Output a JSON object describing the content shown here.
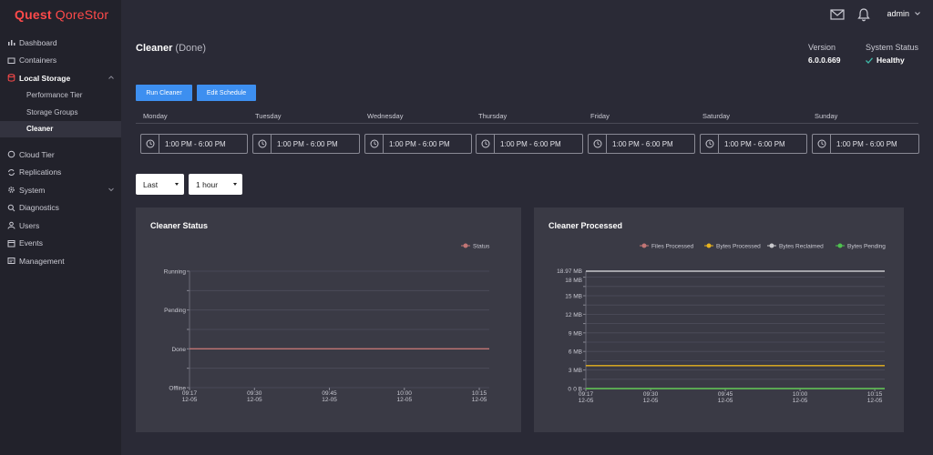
{
  "brand": {
    "name": "Quest",
    "product": "QoreStor"
  },
  "sidebar": {
    "items": [
      {
        "label": "Dashboard",
        "icon": "bar-chart-icon"
      },
      {
        "label": "Containers",
        "icon": "folder-icon"
      },
      {
        "label": "Local Storage",
        "icon": "database-icon"
      }
    ],
    "sub_items": [
      {
        "label": "Performance Tier"
      },
      {
        "label": "Storage Groups"
      },
      {
        "label": "Cleaner"
      }
    ],
    "items2": [
      {
        "label": "Cloud Tier",
        "icon": "cloud-icon"
      },
      {
        "label": "Replications",
        "icon": "replication-icon"
      },
      {
        "label": "System",
        "icon": "gear-icon"
      },
      {
        "label": "Diagnostics",
        "icon": "magnifier-icon"
      },
      {
        "label": "Users",
        "icon": "user-icon"
      },
      {
        "label": "Events",
        "icon": "calendar-icon"
      },
      {
        "label": "Management",
        "icon": "management-icon"
      }
    ]
  },
  "topbar": {
    "user": "admin",
    "icons": [
      "mail-icon",
      "bell-icon"
    ]
  },
  "page": {
    "title": "Cleaner",
    "status": "(Done)",
    "version_label": "Version",
    "version_value": "6.0.0.669",
    "system_status_label": "System Status",
    "system_status_value": "Healthy",
    "status_color": "#3fb8a8"
  },
  "buttons": {
    "run": "Run Cleaner",
    "edit": "Edit Schedule",
    "color": "#3d8ff0"
  },
  "schedule": [
    {
      "day": "Monday",
      "time": "1:00 PM - 6:00 PM"
    },
    {
      "day": "Tuesday",
      "time": "1:00 PM - 6:00 PM"
    },
    {
      "day": "Wednesday",
      "time": "1:00 PM - 6:00 PM"
    },
    {
      "day": "Thursday",
      "time": "1:00 PM - 6:00 PM"
    },
    {
      "day": "Friday",
      "time": "1:00 PM - 6:00 PM"
    },
    {
      "day": "Saturday",
      "time": "1:00 PM - 6:00 PM"
    },
    {
      "day": "Sunday",
      "time": "1:00 PM - 6:00 PM"
    }
  ],
  "filters": {
    "range": "Last",
    "unit": "1 hour"
  },
  "chart_data": [
    {
      "type": "line",
      "title": "Cleaner Status",
      "categories": [
        "Offline",
        "Done",
        "Pending",
        "Running"
      ],
      "x_ticks": [
        {
          "time": "09:17",
          "date": "12-05"
        },
        {
          "time": "09:30",
          "date": "12-05"
        },
        {
          "time": "09:45",
          "date": "12-05"
        },
        {
          "time": "10:00",
          "date": "12-05"
        },
        {
          "time": "10:15",
          "date": "12-05"
        }
      ],
      "x_range": [
        "09:17",
        "10:17"
      ],
      "series": [
        {
          "name": "Status",
          "color": "#c27575",
          "value": "Done"
        }
      ],
      "legend_position": "top-right",
      "grid": true
    },
    {
      "type": "line",
      "title": "Cleaner Processed",
      "y_ticks": [
        "0",
        "0 B",
        "3 MB",
        "6 MB",
        "9 MB",
        "12 MB",
        "15 MB",
        "18 MB",
        "18.97 MB"
      ],
      "y_unit": "MB",
      "ylim": [
        0,
        18.97
      ],
      "x_ticks": [
        {
          "time": "09:17",
          "date": "12-05"
        },
        {
          "time": "09:30",
          "date": "12-05"
        },
        {
          "time": "09:45",
          "date": "12-05"
        },
        {
          "time": "10:00",
          "date": "12-05"
        },
        {
          "time": "10:15",
          "date": "12-05"
        }
      ],
      "x_range": [
        "09:17",
        "10:17"
      ],
      "series": [
        {
          "name": "Files Processed",
          "color": "#c27575",
          "value": 0
        },
        {
          "name": "Bytes Processed",
          "color": "#e8b31e",
          "value": 3.7
        },
        {
          "name": "Bytes Reclaimed",
          "color": "#c8c8cc",
          "value": 18.97
        },
        {
          "name": "Bytes Pending",
          "color": "#4fc24f",
          "value": 0
        }
      ],
      "legend_position": "top-right",
      "grid": true
    }
  ]
}
